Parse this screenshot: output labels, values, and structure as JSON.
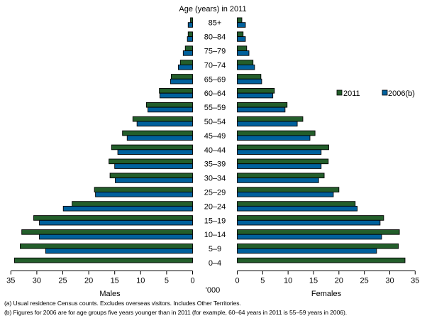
{
  "chart_data": {
    "type": "bar",
    "orientation": "horizontal population pyramid",
    "title": "Age (years) in 2011",
    "unit_label": "'000",
    "left_label": "Males",
    "right_label": "Females",
    "xlim": [
      0,
      35
    ],
    "xticks": [
      "0",
      "5",
      "10",
      "15",
      "20",
      "25",
      "30",
      "35"
    ],
    "categories": [
      "85+",
      "80–84",
      "75–79",
      "70–74",
      "65–69",
      "60–64",
      "55–59",
      "50–54",
      "45–49",
      "40–44",
      "35–39",
      "30–34",
      "25–29",
      "20–24",
      "15–19",
      "10–14",
      "5–9",
      "0–4"
    ],
    "legend": {
      "position": "right",
      "entries": [
        "2011",
        "2006(b)"
      ]
    },
    "colors": {
      "2011": "#235e2b",
      "2006": "#00619d"
    },
    "series": [
      {
        "name": "2011",
        "sex": "Males",
        "values": [
          0.4,
          0.85,
          1.4,
          2.35,
          4.1,
          6.4,
          8.9,
          11.5,
          13.5,
          15.6,
          16.1,
          15.9,
          18.9,
          23.2,
          30.6,
          32.9,
          33.2,
          34.3
        ]
      },
      {
        "name": "2006(b)",
        "sex": "Males",
        "values": [
          0.85,
          1.0,
          1.8,
          2.75,
          4.25,
          6.3,
          8.6,
          10.7,
          12.6,
          14.4,
          15.0,
          14.9,
          18.7,
          24.9,
          29.5,
          29.5,
          28.3,
          null
        ]
      },
      {
        "name": "2011",
        "sex": "Females",
        "values": [
          0.9,
          1.15,
          1.85,
          3.1,
          4.65,
          7.3,
          9.8,
          12.9,
          15.3,
          18.0,
          17.9,
          17.1,
          20.0,
          23.2,
          28.8,
          31.9,
          31.7,
          33.0
        ]
      },
      {
        "name": "2006(b)",
        "sex": "Females",
        "values": [
          1.6,
          1.6,
          2.3,
          3.4,
          4.8,
          7.0,
          9.4,
          11.8,
          14.3,
          16.5,
          16.5,
          16.0,
          18.9,
          23.6,
          28.1,
          28.4,
          27.4,
          null
        ]
      }
    ]
  },
  "footnotes": [
    "(a) Usual residence Census counts. Excludes overseas visitors. Includes Other Territories.",
    "(b) Figures for 2006 are for age groups five years younger than in 2011 (for example, 60–64 years in 2011 is 55–59 years in 2006)."
  ]
}
